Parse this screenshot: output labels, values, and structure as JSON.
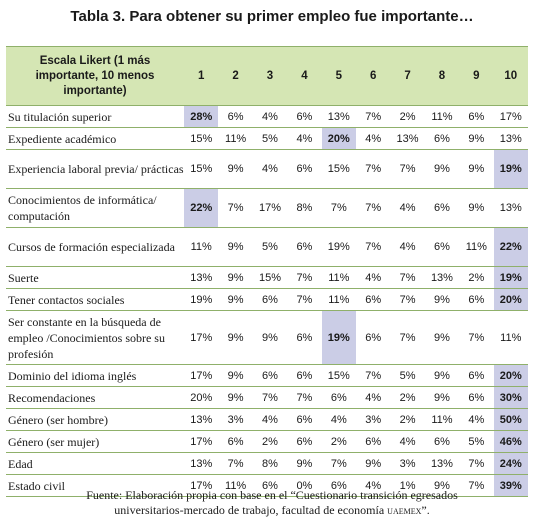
{
  "title": "Tabla 3. Para obtener su primer empleo fue importante…",
  "table": {
    "header_label": "Escala Likert (1 más importante, 10 menos importante)",
    "columns": [
      "1",
      "2",
      "3",
      "4",
      "5",
      "6",
      "7",
      "8",
      "9",
      "10"
    ],
    "rows": [
      {
        "label": "Su titulación superior",
        "values": [
          "28%",
          "6%",
          "4%",
          "6%",
          "13%",
          "7%",
          "2%",
          "11%",
          "6%",
          "17%"
        ],
        "highlight": 0
      },
      {
        "label": "Expediente académico",
        "values": [
          "15%",
          "11%",
          "5%",
          "4%",
          "20%",
          "4%",
          "13%",
          "6%",
          "9%",
          "13%"
        ],
        "highlight": 4
      },
      {
        "label": "Experiencia laboral previa/ prácticas",
        "values": [
          "15%",
          "9%",
          "4%",
          "6%",
          "15%",
          "7%",
          "7%",
          "9%",
          "9%",
          "19%"
        ],
        "highlight": 9
      },
      {
        "label": "Conocimientos de informática/ computación",
        "values": [
          "22%",
          "7%",
          "17%",
          "8%",
          "7%",
          "7%",
          "4%",
          "6%",
          "9%",
          "13%"
        ],
        "highlight": 0
      },
      {
        "label": "Cursos de formación especializada",
        "values": [
          "11%",
          "9%",
          "5%",
          "6%",
          "19%",
          "7%",
          "4%",
          "6%",
          "11%",
          "22%"
        ],
        "highlight": 9
      },
      {
        "label": "Suerte",
        "values": [
          "13%",
          "9%",
          "15%",
          "7%",
          "11%",
          "4%",
          "7%",
          "13%",
          "2%",
          "19%"
        ],
        "highlight": 9
      },
      {
        "label": "Tener contactos sociales",
        "values": [
          "19%",
          "9%",
          "6%",
          "7%",
          "11%",
          "6%",
          "7%",
          "9%",
          "6%",
          "20%"
        ],
        "highlight": 9
      },
      {
        "label": "Ser constante en la búsqueda de empleo /Conocimientos sobre su profesión",
        "values": [
          "17%",
          "9%",
          "9%",
          "6%",
          "19%",
          "6%",
          "7%",
          "9%",
          "7%",
          "11%"
        ],
        "highlight": 4
      },
      {
        "label": "Dominio del idioma inglés",
        "values": [
          "17%",
          "9%",
          "6%",
          "6%",
          "15%",
          "7%",
          "5%",
          "9%",
          "6%",
          "20%"
        ],
        "highlight": 9
      },
      {
        "label": "Recomendaciones",
        "values": [
          "20%",
          "9%",
          "7%",
          "7%",
          "6%",
          "4%",
          "2%",
          "9%",
          "6%",
          "30%"
        ],
        "highlight": 9
      },
      {
        "label": "Género (ser hombre)",
        "values": [
          "13%",
          "3%",
          "4%",
          "6%",
          "4%",
          "3%",
          "2%",
          "11%",
          "4%",
          "50%"
        ],
        "highlight": 9
      },
      {
        "label": "Género (ser mujer)",
        "values": [
          "17%",
          "6%",
          "2%",
          "6%",
          "2%",
          "6%",
          "4%",
          "6%",
          "5%",
          "46%"
        ],
        "highlight": 9
      },
      {
        "label": "Edad",
        "values": [
          "13%",
          "7%",
          "8%",
          "9%",
          "7%",
          "9%",
          "3%",
          "13%",
          "7%",
          "24%"
        ],
        "highlight": 9
      },
      {
        "label": "Estado civil",
        "values": [
          "17%",
          "11%",
          "6%",
          "0%",
          "6%",
          "4%",
          "1%",
          "9%",
          "7%",
          "39%"
        ],
        "highlight": 9
      }
    ]
  },
  "source": {
    "line1": "Fuente: Elaboración propia con base en el “Cuestionario transición egresados",
    "line2_text": "universitarios-mercado de trabajo, facultad de economía",
    "line2_institution": "uaemex",
    "line2_end": "”."
  },
  "colors": {
    "header_bg": "#d5e6b4",
    "highlight_bg": "#cbcde6",
    "rule": "#8fb06a"
  }
}
